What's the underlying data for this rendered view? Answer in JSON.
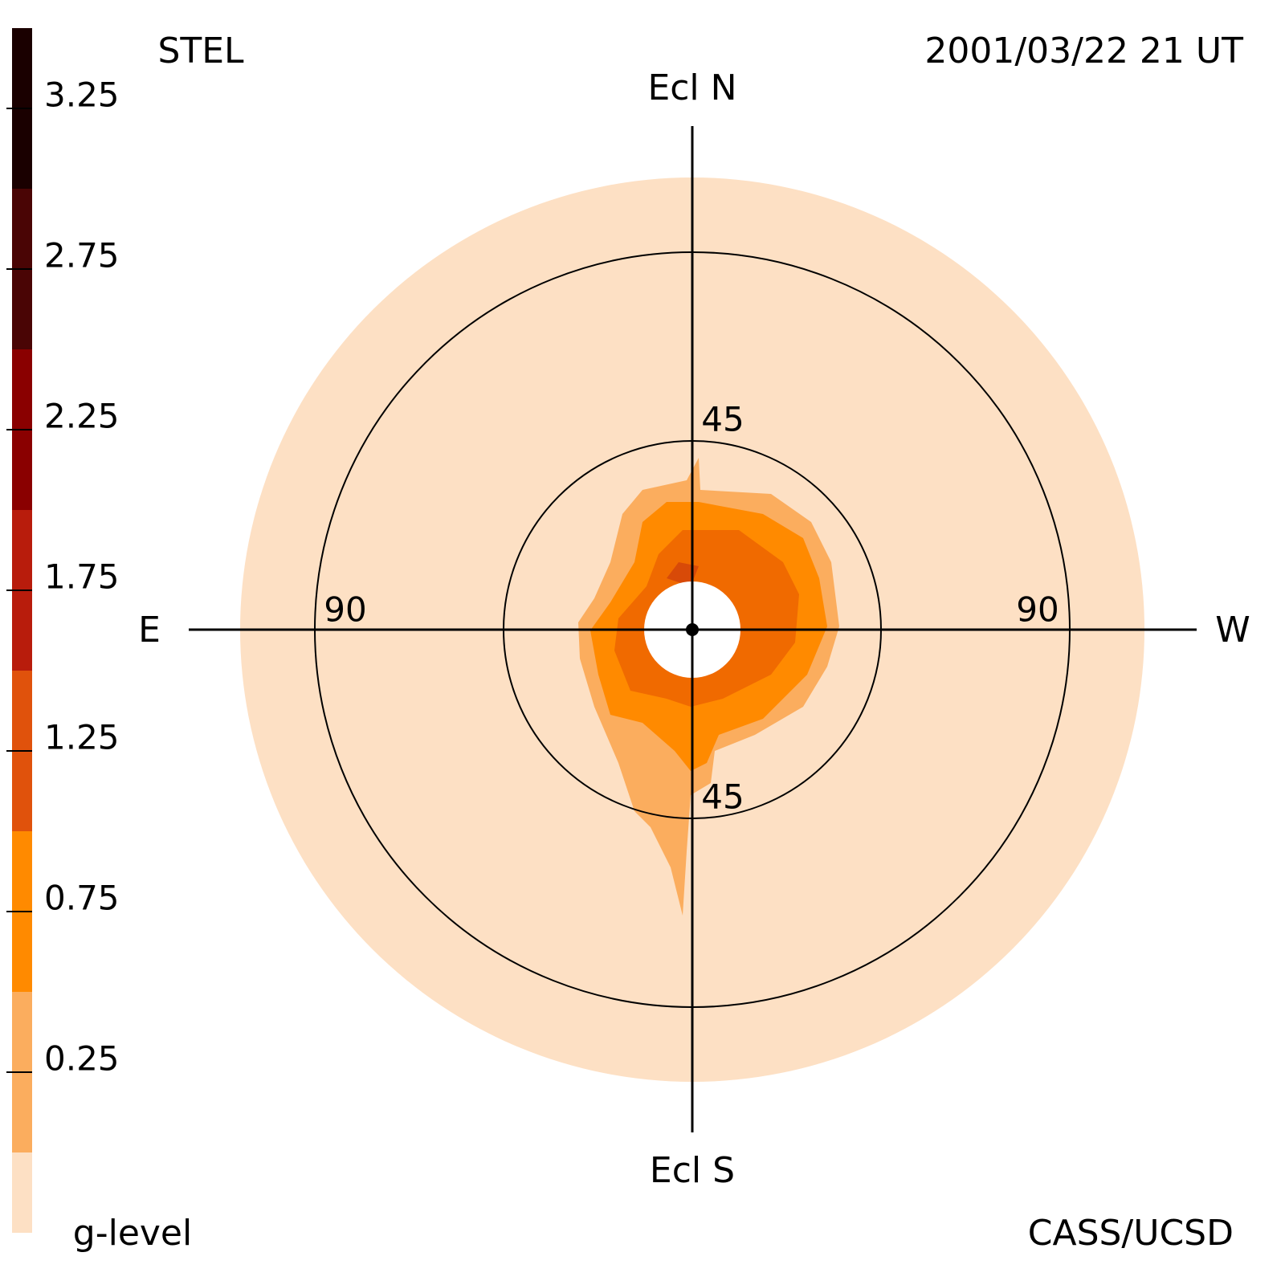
{
  "header": {
    "station": "STEL",
    "timestamp": "2001/03/22 21 UT",
    "credit": "CASS/UCSD"
  },
  "map": {
    "north": "Ecl N",
    "south": "Ecl S",
    "east": "E",
    "west": "W",
    "ring_labels": {
      "inner_top": "45",
      "inner_bottom": "45",
      "outer_left": "90",
      "outer_right": "90"
    }
  },
  "colorbar": {
    "label": "g-level",
    "bounds": [
      -0.25,
      0,
      0.5,
      1.0,
      1.5,
      2.0,
      2.5,
      3.0,
      3.5
    ],
    "colors": [
      "#fde0c4",
      "#fbad5e",
      "#ff8a00",
      "#e0520c",
      "#b81c0c",
      "#8a0000",
      "#4a0505",
      "#1a0000"
    ],
    "ticks": [
      0.25,
      0.75,
      1.25,
      1.75,
      2.25,
      2.75,
      3.25
    ]
  }
}
